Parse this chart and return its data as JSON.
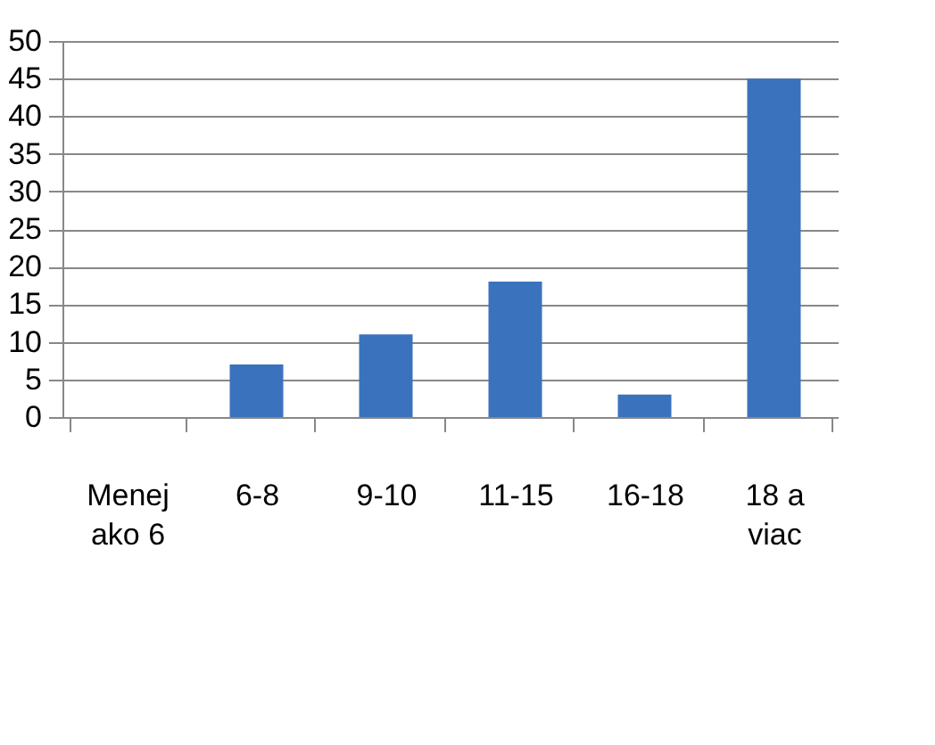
{
  "chart_data": {
    "type": "bar",
    "categories": [
      "Menej ako 6",
      "6-8",
      "9-10",
      "11-15",
      "16-18",
      "18 a viac"
    ],
    "values": [
      0,
      7,
      11,
      18,
      3,
      45
    ],
    "color": "#3b72bd",
    "ylim": [
      0,
      50
    ],
    "yticks": [
      0,
      5,
      10,
      15,
      20,
      25,
      30,
      35,
      40,
      45,
      50
    ],
    "grid": "y"
  }
}
